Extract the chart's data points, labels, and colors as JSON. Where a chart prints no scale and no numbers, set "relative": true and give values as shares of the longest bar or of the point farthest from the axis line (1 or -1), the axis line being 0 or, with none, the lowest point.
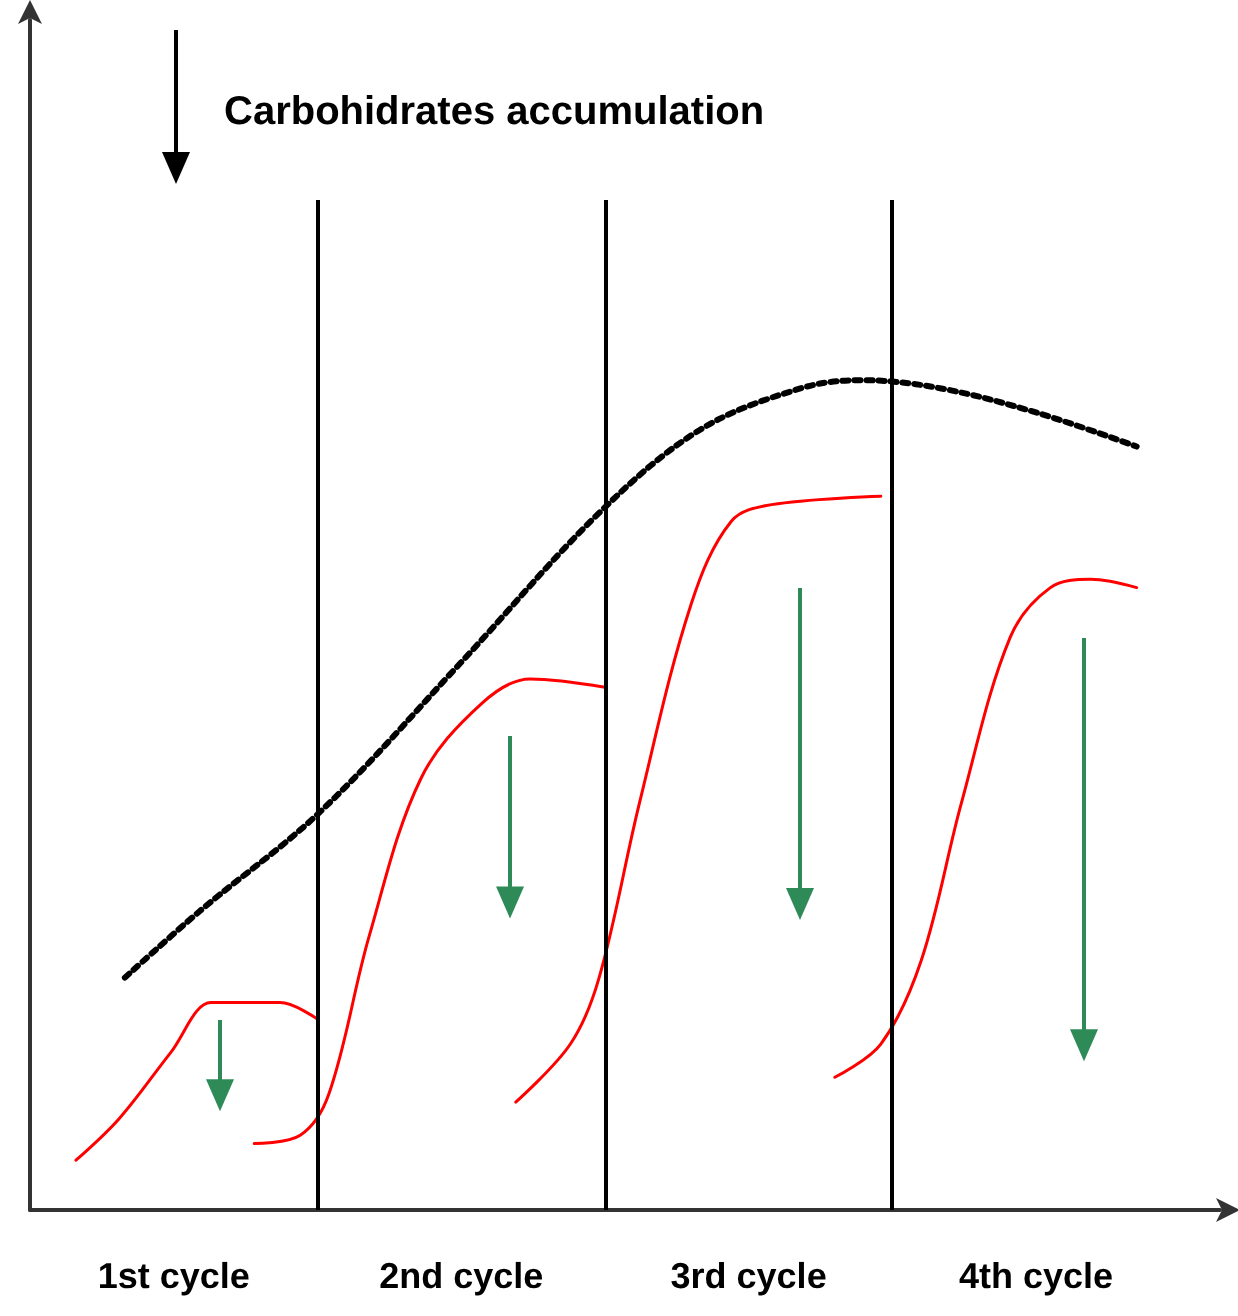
{
  "chart_data": {
    "type": "line",
    "relative": true,
    "tick_labels": "x",
    "grid": false,
    "marker": "none",
    "annotations": [
      "Carbohidrates accumulation"
    ],
    "xlim": [
      0,
      4.14
    ],
    "xticks": [
      {
        "value": 0.5,
        "label": "1st cycle"
      },
      {
        "value": 1.5,
        "label": "2nd cycle"
      },
      {
        "value": 2.5,
        "label": "3rd cycle"
      },
      {
        "value": 3.5,
        "label": "4th cycle"
      }
    ],
    "ref_lines": [
      {
        "axis": "x",
        "value": 1,
        "color": "#000000"
      },
      {
        "axis": "x",
        "value": 2,
        "color": "#000000"
      },
      {
        "axis": "x",
        "value": 3,
        "color": "#000000"
      }
    ],
    "series": [
      {
        "color": "#000000",
        "line_style": "dotted",
        "x": [
          0.33,
          0.59,
          1.01,
          1.5,
          1.98,
          2.33,
          2.68,
          2.89,
          3.17,
          3.51,
          3.85
        ],
        "values": [
          0.28,
          0.36,
          0.48,
          0.66,
          0.84,
          0.94,
          0.99,
          1.0,
          0.99,
          0.96,
          0.92
        ]
      },
      {
        "color": "#ff0000",
        "line_style": "solid",
        "x": [
          0.16,
          0.31,
          0.49,
          0.63,
          0.73,
          0.87,
          1.0
        ],
        "values": [
          0.06,
          0.11,
          0.19,
          0.25,
          0.25,
          0.25,
          0.23
        ]
      },
      {
        "color": "#ff0000",
        "line_style": "solid",
        "x": [
          0.78,
          0.94,
          1.04,
          1.18,
          1.36,
          1.57,
          1.74,
          2.0
        ],
        "values": [
          0.08,
          0.09,
          0.14,
          0.33,
          0.52,
          0.61,
          0.64,
          0.63
        ]
      },
      {
        "color": "#ff0000",
        "line_style": "solid",
        "x": [
          1.69,
          1.88,
          1.98,
          2.12,
          2.3,
          2.44,
          2.58,
          2.96
        ],
        "values": [
          0.13,
          0.2,
          0.28,
          0.49,
          0.73,
          0.83,
          0.85,
          0.86
        ]
      },
      {
        "color": "#ff0000",
        "line_style": "solid",
        "x": [
          2.8,
          2.96,
          3.1,
          3.24,
          3.41,
          3.55,
          3.69,
          3.85
        ],
        "values": [
          0.16,
          0.2,
          0.3,
          0.49,
          0.69,
          0.75,
          0.76,
          0.75
        ]
      }
    ]
  }
}
